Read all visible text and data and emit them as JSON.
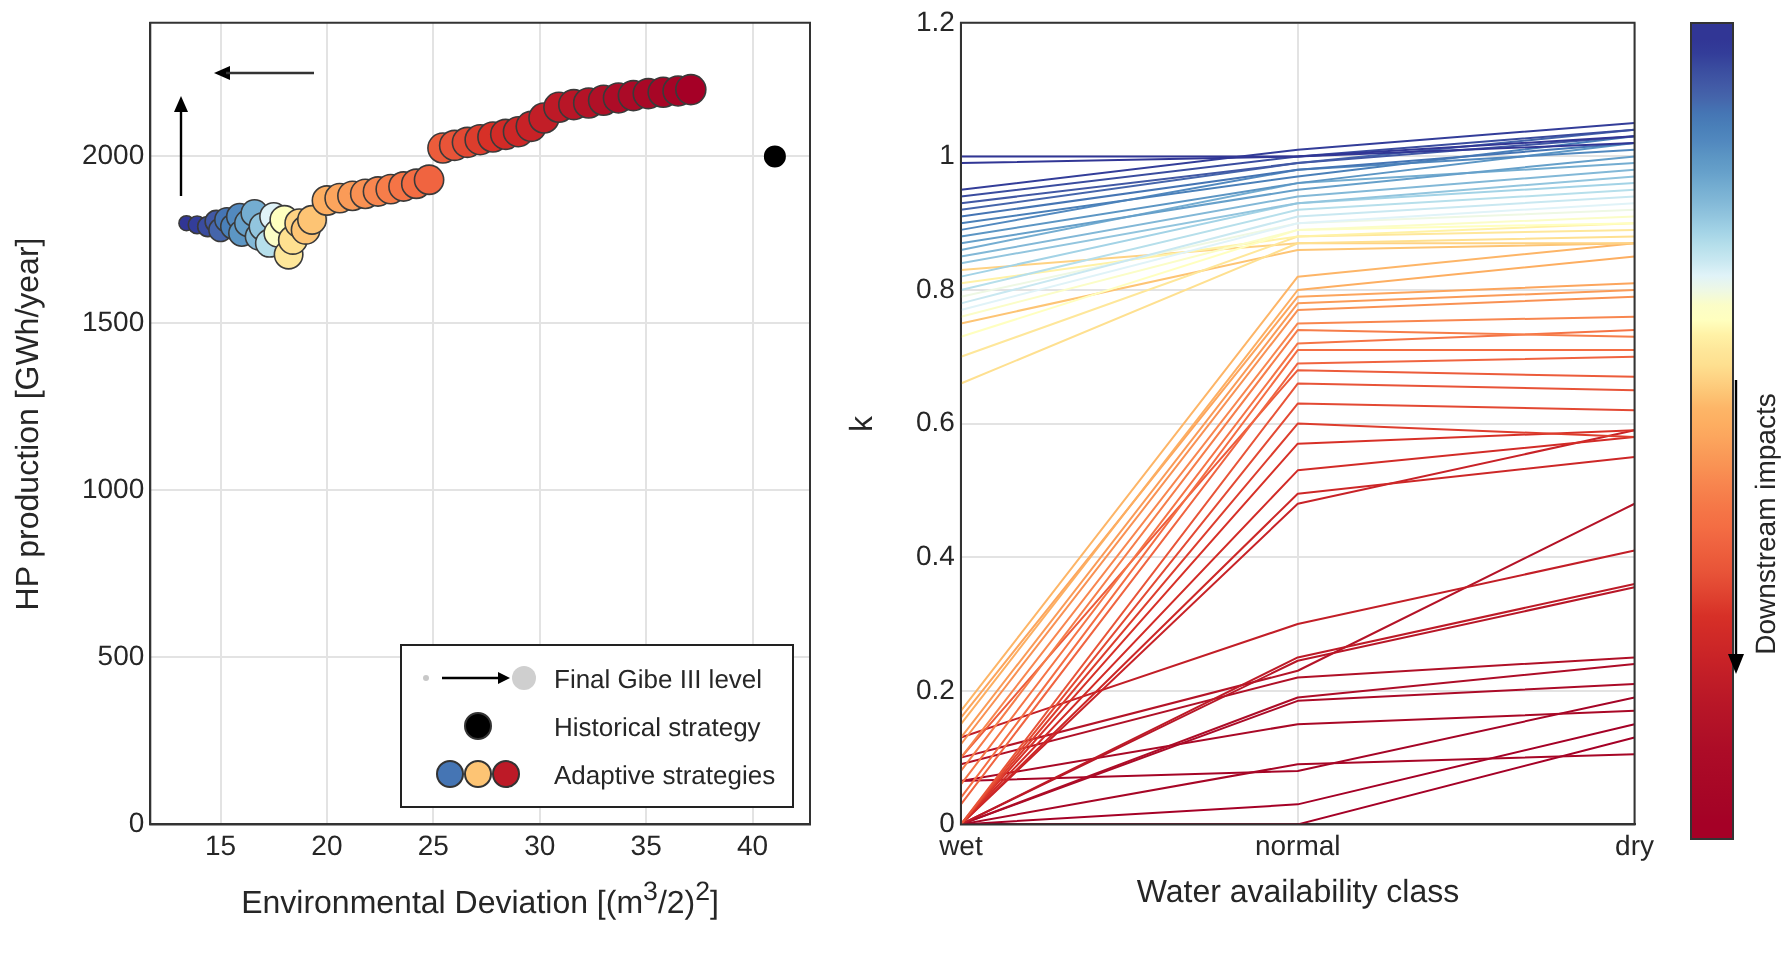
{
  "chart_data": [
    {
      "type": "bubble",
      "xlabel": "Environmental Deviation  [(m$^{3}$/2)$^{2}$]",
      "ylabel": "HP production [GWh/year]",
      "xlim": [
        11.7,
        42.7
      ],
      "xticks": [
        15,
        20,
        25,
        30,
        35,
        40
      ],
      "ylim": [
        0,
        2400
      ],
      "yticks": [
        0,
        500,
        1000,
        1500,
        2000
      ],
      "grid": true,
      "legend": "bottom right",
      "annotations": [
        "Final Gibe III level"
      ],
      "series": [
        {
          "name": "Adaptive strategies",
          "x": [
            13.4,
            13.9,
            14.4,
            14.8,
            15.0,
            15.3,
            15.6,
            15.9,
            16.0,
            16.3,
            16.6,
            16.8,
            17.0,
            17.3,
            17.5,
            17.7,
            18.0,
            18.2,
            18.4,
            18.7,
            19.0,
            19.3,
            20.0,
            20.6,
            21.2,
            21.8,
            22.4,
            23.0,
            23.6,
            24.2,
            24.8,
            25.45,
            26.0,
            26.6,
            27.2,
            27.8,
            28.4,
            29.0,
            29.6,
            30.2,
            30.9,
            31.6,
            32.3,
            33.0,
            33.7,
            34.4,
            35.1,
            35.8,
            36.5,
            37.1
          ],
          "values": [
            1800,
            1795,
            1790,
            1805,
            1780,
            1810,
            1790,
            1820,
            1770,
            1800,
            1830,
            1760,
            1790,
            1740,
            1820,
            1770,
            1810,
            1706,
            1750,
            1800,
            1780,
            1810,
            1868,
            1875,
            1882,
            1888,
            1895,
            1902,
            1910,
            1918,
            1930,
            2025,
            2033,
            2042,
            2050,
            2058,
            2066,
            2074,
            2090,
            2115,
            2147,
            2155,
            2160,
            2168,
            2175,
            2182,
            2188,
            2192,
            2196,
            2200
          ],
          "sizes": [
            0.25,
            0.35,
            0.45,
            0.55,
            0.6,
            0.65,
            0.7,
            0.75,
            0.75,
            0.8,
            0.8,
            0.8,
            0.85,
            0.85,
            0.85,
            0.85,
            0.9,
            0.9,
            0.9,
            0.9,
            0.9,
            0.9,
            0.95,
            0.95,
            0.95,
            0.95,
            0.95,
            0.95,
            0.95,
            0.95,
            0.95,
            1,
            1,
            1,
            1,
            1,
            1,
            1,
            1,
            1,
            1,
            1,
            1,
            1,
            1,
            1,
            1,
            1,
            1,
            1
          ],
          "colors": [
            "#313695",
            "#333d99",
            "#3a4c9f",
            "#4158a5",
            "#4565ab",
            "#4575b4",
            "#4a80b9",
            "#5289bf",
            "#5c96c4",
            "#66a0ca",
            "#74add1",
            "#82b8d7",
            "#92c5de",
            "#b6dfeb",
            "#e0f3f8",
            "#fbfdc7",
            "#ffffbf",
            "#fee79a",
            "#fee090",
            "#fed283",
            "#fdc474",
            "#fdc474",
            "#fdae61",
            "#fca55d",
            "#fa9b58",
            "#f99153",
            "#f8864f",
            "#f67d4a",
            "#f57446",
            "#f46d43",
            "#f06440",
            "#ec5c3b",
            "#e85438",
            "#e34933",
            "#dd3d2d",
            "#d73027",
            "#d22b27",
            "#cd2727",
            "#c82227",
            "#c21e27",
            "#bd1a27",
            "#b81627",
            "#b41327",
            "#b01027",
            "#ad0c27",
            "#ab0a27",
            "#a90826",
            "#a70626",
            "#a50426",
            "#a50026"
          ]
        },
        {
          "name": "Historical strategy",
          "type": "scatter",
          "x": [
            41.05
          ],
          "values": [
            2000
          ],
          "color": "#000000"
        }
      ]
    },
    {
      "type": "line",
      "xlabel": "Water availability class",
      "ylabel": "k",
      "clabel": "Downstream impacts",
      "categories": [
        "wet",
        "normal",
        "dry"
      ],
      "ylim": [
        0,
        1.2
      ],
      "yticks": [
        0,
        0.2,
        0.4,
        0.6,
        0.8,
        1,
        1.2
      ],
      "grid": true,
      "legend": false,
      "marker": "none",
      "line_style": "solid",
      "series": [
        {
          "color": "#313695",
          "values": [
            1.0,
            1.0,
            1.02
          ]
        },
        {
          "color": "#313695",
          "values": [
            0.99,
            1.0,
            1.03
          ]
        },
        {
          "color": "#333d99",
          "values": [
            0.95,
            1.01,
            1.05
          ]
        },
        {
          "color": "#3a4c9f",
          "values": [
            0.94,
            1.0,
            1.04
          ]
        },
        {
          "color": "#4158a5",
          "values": [
            0.93,
            0.99,
            1.03
          ]
        },
        {
          "color": "#4565ab",
          "values": [
            0.92,
            0.99,
            1.04
          ]
        },
        {
          "color": "#4575b4",
          "values": [
            0.91,
            0.98,
            1.02
          ]
        },
        {
          "color": "#4a80b9",
          "values": [
            0.9,
            0.97,
            1.03
          ]
        },
        {
          "color": "#5289bf",
          "values": [
            0.89,
            0.98,
            1.01
          ]
        },
        {
          "color": "#5c96c4",
          "values": [
            0.88,
            0.96,
            1.02
          ]
        },
        {
          "color": "#66a0ca",
          "values": [
            0.87,
            0.95,
            1.0
          ]
        },
        {
          "color": "#74add1",
          "values": [
            0.86,
            0.96,
            0.99
          ]
        },
        {
          "color": "#82b8d7",
          "values": [
            0.85,
            0.94,
            0.98
          ]
        },
        {
          "color": "#92c5de",
          "values": [
            0.84,
            0.93,
            0.97
          ]
        },
        {
          "color": "#a3d3e6",
          "values": [
            0.82,
            0.93,
            0.96
          ]
        },
        {
          "color": "#b6dfeb",
          "values": [
            0.8,
            0.92,
            0.95
          ]
        },
        {
          "color": "#c9e8f1",
          "values": [
            0.78,
            0.91,
            0.94
          ]
        },
        {
          "color": "#e0f3f8",
          "values": [
            0.77,
            0.9,
            0.93
          ]
        },
        {
          "color": "#eef8e4",
          "values": [
            0.79,
            0.9,
            0.92
          ]
        },
        {
          "color": "#fbfdc7",
          "values": [
            0.76,
            0.89,
            0.91
          ]
        },
        {
          "color": "#ffffbf",
          "values": [
            0.73,
            0.89,
            0.9
          ]
        },
        {
          "color": "#fff2a6",
          "values": [
            0.81,
            0.88,
            0.9
          ]
        },
        {
          "color": "#fee79a",
          "values": [
            0.7,
            0.88,
            0.89
          ]
        },
        {
          "color": "#fee090",
          "values": [
            0.66,
            0.87,
            0.88
          ]
        },
        {
          "color": "#fed283",
          "values": [
            0.83,
            0.87,
            0.87
          ]
        },
        {
          "color": "#fdc474",
          "values": [
            0.75,
            0.86,
            0.87
          ]
        },
        {
          "color": "#fdb567",
          "values": [
            0.17,
            0.82,
            0.87
          ]
        },
        {
          "color": "#fdae61",
          "values": [
            0.15,
            0.8,
            0.85
          ]
        },
        {
          "color": "#fca55d",
          "values": [
            0.16,
            0.79,
            0.81
          ]
        },
        {
          "color": "#fa9b58",
          "values": [
            0.13,
            0.78,
            0.8
          ]
        },
        {
          "color": "#f99153",
          "values": [
            0.12,
            0.77,
            0.79
          ]
        },
        {
          "color": "#f8864f",
          "values": [
            0.1,
            0.75,
            0.76
          ]
        },
        {
          "color": "#f67d4a",
          "values": [
            0.08,
            0.74,
            0.73
          ]
        },
        {
          "color": "#f57446",
          "values": [
            0.06,
            0.72,
            0.74
          ]
        },
        {
          "color": "#f46d43",
          "values": [
            0.04,
            0.71,
            0.71
          ]
        },
        {
          "color": "#f06440",
          "values": [
            0.03,
            0.69,
            0.7
          ]
        },
        {
          "color": "#ec5c3b",
          "values": [
            0.1,
            0.68,
            0.67
          ]
        },
        {
          "color": "#e85438",
          "values": [
            0.0,
            0.66,
            0.65
          ]
        },
        {
          "color": "#e34933",
          "values": [
            0.0,
            0.63,
            0.62
          ]
        },
        {
          "color": "#dd3d2d",
          "values": [
            0.0,
            0.6,
            0.58
          ]
        },
        {
          "color": "#d73027",
          "values": [
            0.0,
            0.57,
            0.59
          ]
        },
        {
          "color": "#d22b27",
          "values": [
            0.0,
            0.53,
            0.58
          ]
        },
        {
          "color": "#cd2727",
          "values": [
            0.0,
            0.495,
            0.55
          ]
        },
        {
          "color": "#c82227",
          "values": [
            0.0,
            0.48,
            0.59
          ]
        },
        {
          "color": "#c21e27",
          "values": [
            0.13,
            0.3,
            0.41
          ]
        },
        {
          "color": "#bd1a27",
          "values": [
            0.0,
            0.25,
            0.36
          ]
        },
        {
          "color": "#b81627",
          "values": [
            0.0,
            0.245,
            0.355
          ]
        },
        {
          "color": "#b41327",
          "values": [
            0.1,
            0.23,
            0.48
          ]
        },
        {
          "color": "#b01027",
          "values": [
            0.09,
            0.22,
            0.25
          ]
        },
        {
          "color": "#ad0c27",
          "values": [
            0.0,
            0.19,
            0.24
          ]
        },
        {
          "color": "#ab0a27",
          "values": [
            0.0,
            0.185,
            0.21
          ]
        },
        {
          "color": "#a90826",
          "values": [
            0.065,
            0.15,
            0.17
          ]
        },
        {
          "color": "#a70626",
          "values": [
            0.0,
            0.09,
            0.105
          ]
        },
        {
          "color": "#a50426",
          "values": [
            0.065,
            0.08,
            0.19
          ]
        },
        {
          "color": "#a50026",
          "values": [
            0.0,
            0.03,
            0.15
          ]
        },
        {
          "color": "#a50026",
          "values": [
            0.0,
            0.0,
            0.13
          ]
        }
      ]
    }
  ]
}
